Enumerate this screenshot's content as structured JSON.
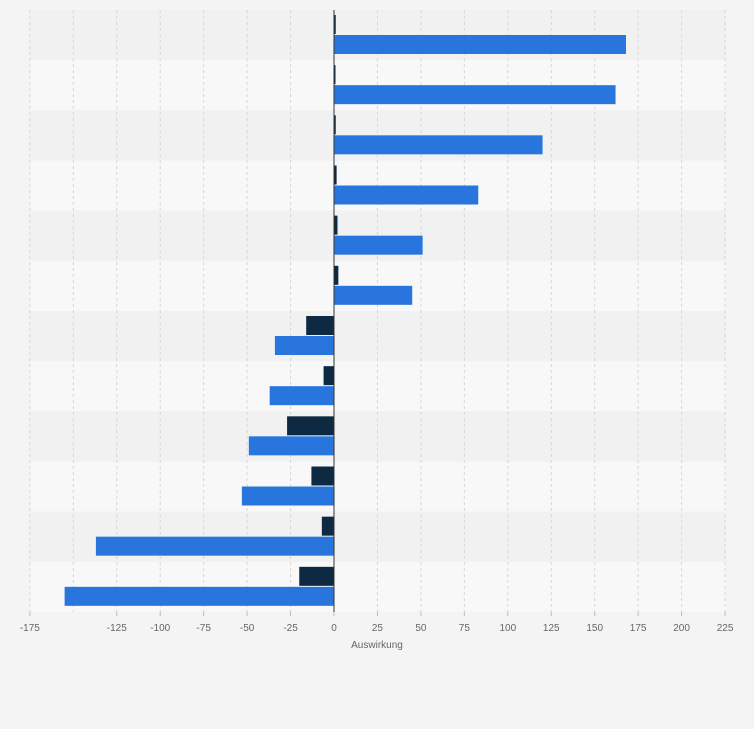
{
  "chart_data": {
    "type": "bar",
    "orientation": "horizontal",
    "title": "",
    "xlabel": "Auswirkung",
    "ylabel": "",
    "xlim": [
      -175,
      225
    ],
    "x_ticks": [
      -175,
      -125,
      -100,
      -75,
      -50,
      -25,
      0,
      25,
      50,
      75,
      100,
      125,
      150,
      175,
      200,
      225
    ],
    "grid": "vertical dashed",
    "legend": "none",
    "colors": {
      "series_dark": "#0d2a42",
      "series_blue": "#2876dd",
      "zero_line": "#333333",
      "grid": "#d6d6d6"
    },
    "categories": [
      "",
      "",
      "",
      "",
      "",
      "",
      "",
      "",
      "",
      "",
      "",
      ""
    ],
    "series": [
      {
        "values": [
          1,
          0.5,
          1,
          1.5,
          2,
          2.5,
          -16,
          -6,
          -27,
          -13,
          -7,
          -20
        ]
      },
      {
        "values": [
          168,
          162,
          120,
          83,
          51,
          45,
          -34,
          -37,
          -49,
          -53,
          -137,
          -155
        ]
      }
    ]
  }
}
